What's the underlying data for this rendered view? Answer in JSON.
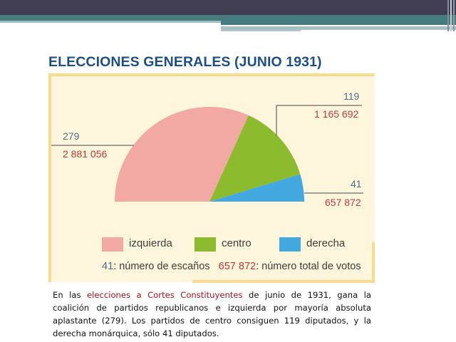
{
  "slide": {
    "colors": {
      "top_bar": "#413e54",
      "teal": "#467c80",
      "teal_light": "#9dbcbd"
    }
  },
  "chart_data": {
    "type": "pie",
    "variant": "semicircle (parliament seats)",
    "title": "ELECCIONES GENERALES (JUNIO 1931)",
    "categories": [
      "izquierda",
      "centro",
      "derecha"
    ],
    "series": [
      {
        "name": "número de escaños",
        "values": [
          279,
          119,
          41
        ]
      },
      {
        "name": "número total de votos",
        "values": [
          2881056,
          1165692,
          657872
        ]
      }
    ],
    "colors": [
      "#f2a9a4",
      "#8dbb2e",
      "#44a8e0"
    ],
    "labels": [
      {
        "category": "izquierda",
        "seats": "279",
        "votes": "2 881 056"
      },
      {
        "category": "centro",
        "seats": "119",
        "votes": "1 165 692"
      },
      {
        "category": "derecha",
        "seats": "41",
        "votes": "657 872"
      }
    ],
    "legend": {
      "position": "bottom",
      "items": [
        "izquierda",
        "centro",
        "derecha"
      ],
      "note_seats_example": "41",
      "note_seats_text": ": número de escaños",
      "note_votes_example": "657 872",
      "note_votes_text": ": número total de votos"
    },
    "grid": false
  },
  "caption": {
    "part1": "En las ",
    "highlight": "elecciones a Cortes Constituyentes",
    "part2": " de junio de 1931, gana la coalición de partidos republicanos e izquierda por mayoría absoluta aplastante (279). Los partidos de centro consiguen 119 diputados, y la derecha monárquica, sólo 41 diputados."
  }
}
